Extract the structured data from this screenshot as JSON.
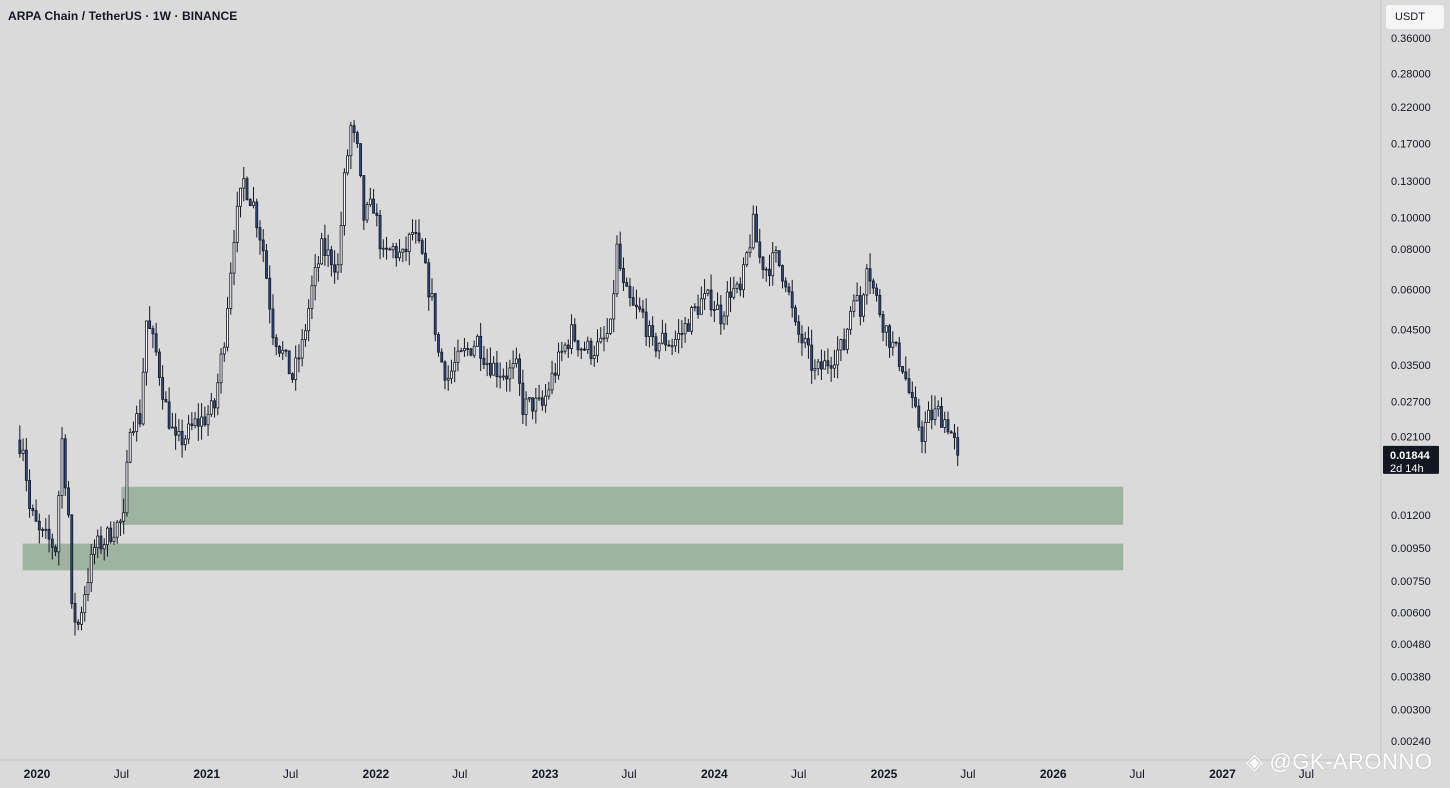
{
  "header": {
    "title": "ARPA Chain / TetherUS · 1W · BINANCE"
  },
  "price_axis": {
    "unit": "USDT",
    "last_price": "0.01844",
    "countdown": "2d 14h"
  },
  "watermark": {
    "text": "@GK-ARONNO",
    "logo": "binance-logo"
  },
  "colors": {
    "background": "#dadada",
    "candle_up": "#ffffff",
    "candle_down": "#2b4c8c",
    "wick": "#131722",
    "zone": "#9fb4a0",
    "axis_text": "#131722",
    "last_price_bg": "#131722"
  },
  "chart_data": {
    "type": "candlestick",
    "title": "ARPA Chain / TetherUS · 1W · BINANCE",
    "y_scale": "log",
    "ylim": [
      0.0022,
      0.39
    ],
    "y_ticks": [
      "0.36000",
      "0.28000",
      "0.22000",
      "0.17000",
      "0.13000",
      "0.10000",
      "0.08000",
      "0.06000",
      "0.04500",
      "0.03500",
      "0.02700",
      "0.02100",
      "0.01844",
      "0.01200",
      "0.00950",
      "0.00750",
      "0.00600",
      "0.00480",
      "0.00380",
      "0.00300",
      "0.00240"
    ],
    "x_ticks": [
      "2020",
      "Jul",
      "2021",
      "Jul",
      "2022",
      "Jul",
      "2023",
      "Jul",
      "2024",
      "Jul",
      "2025",
      "Jul",
      "2026",
      "Jul",
      "2027",
      "Jul"
    ],
    "x_range": [
      "2019-09",
      "2027-08"
    ],
    "zones": [
      {
        "label": "demand-zone-upper",
        "low": 0.0112,
        "high": 0.0147,
        "from": "2020-07",
        "to": "2026-06"
      },
      {
        "label": "demand-zone-lower",
        "low": 0.0081,
        "high": 0.0098,
        "from": "2019-12",
        "to": "2026-06"
      }
    ],
    "price_path": [
      [
        "2019-11-18",
        0.0205
      ],
      [
        "2019-12-02",
        0.02
      ],
      [
        "2019-12-16",
        0.0125
      ],
      [
        "2020-01-06",
        0.0105
      ],
      [
        "2020-01-27",
        0.01
      ],
      [
        "2020-02-10",
        0.0095
      ],
      [
        "2020-02-24",
        0.0205
      ],
      [
        "2020-03-09",
        0.012
      ],
      [
        "2020-03-16",
        0.006
      ],
      [
        "2020-03-30",
        0.0055
      ],
      [
        "2020-04-13",
        0.007
      ],
      [
        "2020-05-04",
        0.0095
      ],
      [
        "2020-05-25",
        0.01
      ],
      [
        "2020-06-15",
        0.011
      ],
      [
        "2020-07-06",
        0.0115
      ],
      [
        "2020-07-20",
        0.0235
      ],
      [
        "2020-08-10",
        0.024
      ],
      [
        "2020-08-24",
        0.048
      ],
      [
        "2020-09-14",
        0.038
      ],
      [
        "2020-10-05",
        0.026
      ],
      [
        "2020-10-26",
        0.02
      ],
      [
        "2020-11-16",
        0.021
      ],
      [
        "2020-12-07",
        0.023
      ],
      [
        "2020-12-28",
        0.024
      ],
      [
        "2021-01-18",
        0.026
      ],
      [
        "2021-02-08",
        0.043
      ],
      [
        "2021-03-01",
        0.09
      ],
      [
        "2021-03-22",
        0.13
      ],
      [
        "2021-04-12",
        0.11
      ],
      [
        "2021-05-03",
        0.08
      ],
      [
        "2021-05-24",
        0.045
      ],
      [
        "2021-06-14",
        0.038
      ],
      [
        "2021-07-05",
        0.032
      ],
      [
        "2021-07-26",
        0.04
      ],
      [
        "2021-08-16",
        0.06
      ],
      [
        "2021-09-06",
        0.08
      ],
      [
        "2021-09-27",
        0.075
      ],
      [
        "2021-10-11",
        0.07
      ],
      [
        "2021-10-25",
        0.13
      ],
      [
        "2021-11-08",
        0.19
      ],
      [
        "2021-11-22",
        0.16
      ],
      [
        "2021-12-06",
        0.1
      ],
      [
        "2021-12-27",
        0.11
      ],
      [
        "2022-01-17",
        0.075
      ],
      [
        "2022-02-07",
        0.08
      ],
      [
        "2022-02-28",
        0.075
      ],
      [
        "2022-03-21",
        0.09
      ],
      [
        "2022-04-11",
        0.075
      ],
      [
        "2022-05-02",
        0.055
      ],
      [
        "2022-05-16",
        0.038
      ],
      [
        "2022-06-06",
        0.032
      ],
      [
        "2022-06-20",
        0.035
      ],
      [
        "2022-07-11",
        0.038
      ],
      [
        "2022-08-08",
        0.042
      ],
      [
        "2022-08-29",
        0.036
      ],
      [
        "2022-09-19",
        0.034
      ],
      [
        "2022-10-10",
        0.033
      ],
      [
        "2022-10-31",
        0.034
      ],
      [
        "2022-11-14",
        0.026
      ],
      [
        "2022-12-05",
        0.0265
      ],
      [
        "2022-12-26",
        0.026
      ],
      [
        "2023-01-16",
        0.032
      ],
      [
        "2023-02-06",
        0.038
      ],
      [
        "2023-02-27",
        0.044
      ],
      [
        "2023-03-20",
        0.04
      ],
      [
        "2023-04-10",
        0.039
      ],
      [
        "2023-05-01",
        0.04
      ],
      [
        "2023-05-22",
        0.045
      ],
      [
        "2023-06-05",
        0.08
      ],
      [
        "2023-06-19",
        0.06
      ],
      [
        "2023-07-10",
        0.052
      ],
      [
        "2023-07-31",
        0.05
      ],
      [
        "2023-08-21",
        0.04
      ],
      [
        "2023-09-11",
        0.042
      ],
      [
        "2023-10-02",
        0.041
      ],
      [
        "2023-10-23",
        0.044
      ],
      [
        "2023-11-13",
        0.05
      ],
      [
        "2023-12-04",
        0.055
      ],
      [
        "2023-12-25",
        0.056
      ],
      [
        "2024-01-15",
        0.05
      ],
      [
        "2024-02-05",
        0.06
      ],
      [
        "2024-02-26",
        0.058
      ],
      [
        "2024-03-11",
        0.076
      ],
      [
        "2024-03-25",
        0.095
      ],
      [
        "2024-04-08",
        0.075
      ],
      [
        "2024-04-22",
        0.07
      ],
      [
        "2024-05-13",
        0.075
      ],
      [
        "2024-06-03",
        0.065
      ],
      [
        "2024-06-24",
        0.045
      ],
      [
        "2024-07-15",
        0.04
      ],
      [
        "2024-08-05",
        0.033
      ],
      [
        "2024-08-26",
        0.035
      ],
      [
        "2024-09-16",
        0.038
      ],
      [
        "2024-10-07",
        0.04
      ],
      [
        "2024-10-28",
        0.06
      ],
      [
        "2024-11-11",
        0.05
      ],
      [
        "2024-11-25",
        0.075
      ],
      [
        "2024-12-09",
        0.06
      ],
      [
        "2024-12-30",
        0.048
      ],
      [
        "2025-01-20",
        0.04
      ],
      [
        "2025-02-10",
        0.035
      ],
      [
        "2025-03-03",
        0.026
      ],
      [
        "2025-03-24",
        0.0215
      ],
      [
        "2025-04-07",
        0.024
      ],
      [
        "2025-04-28",
        0.025
      ],
      [
        "2025-05-19",
        0.023
      ],
      [
        "2025-06-02",
        0.02
      ],
      [
        "2025-06-09",
        0.0184
      ]
    ]
  }
}
